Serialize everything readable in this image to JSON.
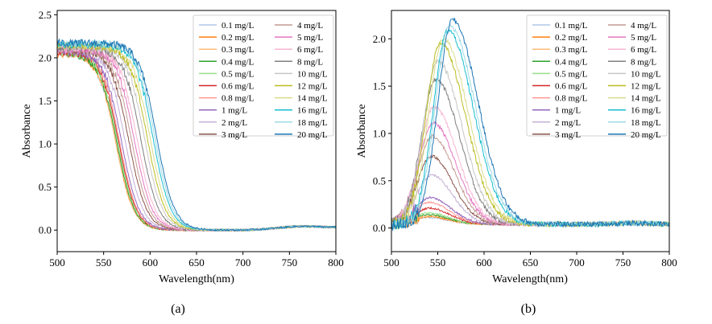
{
  "panels": [
    {
      "label": "(a)"
    },
    {
      "label": "(b)"
    }
  ],
  "legend_entries": [
    "0.1 mg/L",
    "0.2 mg/L",
    "0.3 mg/L",
    "0.4 mg/L",
    "0.5 mg/L",
    "0.6 mg/L",
    "0.8 mg/L",
    "1 mg/L",
    "2 mg/L",
    "3 mg/L",
    "4 mg/L",
    "5 mg/L",
    "6 mg/L",
    "8 mg/L",
    "10 mg/L",
    "12 mg/L",
    "14 mg/L",
    "16 mg/L",
    "18 mg/L",
    "20 mg/L"
  ],
  "series_colors": [
    "#aec7e8",
    "#ff7f0e",
    "#ffbb78",
    "#2ca02c",
    "#98df8a",
    "#d62728",
    "#ff9896",
    "#9467bd",
    "#c5b0d5",
    "#8c564b",
    "#c49c94",
    "#e377c2",
    "#f7b6d2",
    "#7f7f7f",
    "#c7c7c7",
    "#bcbd22",
    "#dbdb8d",
    "#17becf",
    "#9edae5",
    "#1f77b4"
  ],
  "chart_data": [
    {
      "type": "line",
      "panel": "(a)",
      "xlabel": "Wavelength(nm)",
      "ylabel": "Absorbance",
      "xlim": [
        500,
        800
      ],
      "ylim": [
        -0.25,
        2.55
      ],
      "x_ticks": [
        500,
        550,
        600,
        650,
        700,
        750,
        800
      ],
      "y_ticks": [
        0.0,
        0.5,
        1.0,
        1.5,
        2.0,
        2.5
      ],
      "y_tick_labels": [
        "0.0",
        "0.5",
        "1.0",
        "1.5",
        "2.0",
        "2.5"
      ],
      "grid": false,
      "legend_position": "top-right",
      "description_model": "plateau ~2.05-2.2 then sigmoidal drop; half-point wavelength per series",
      "series": [
        {
          "name": "0.1 mg/L",
          "plateau": 2.05,
          "half_point_nm": 563
        },
        {
          "name": "0.2 mg/L",
          "plateau": 2.05,
          "half_point_nm": 563
        },
        {
          "name": "0.3 mg/L",
          "plateau": 2.06,
          "half_point_nm": 563
        },
        {
          "name": "0.4 mg/L",
          "plateau": 2.06,
          "half_point_nm": 564
        },
        {
          "name": "0.5 mg/L",
          "plateau": 2.07,
          "half_point_nm": 565
        },
        {
          "name": "0.6 mg/L",
          "plateau": 2.07,
          "half_point_nm": 566
        },
        {
          "name": "0.8 mg/L",
          "plateau": 2.08,
          "half_point_nm": 567
        },
        {
          "name": "1 mg/L",
          "plateau": 2.08,
          "half_point_nm": 569
        },
        {
          "name": "2 mg/L",
          "plateau": 2.09,
          "half_point_nm": 573
        },
        {
          "name": "3 mg/L",
          "plateau": 2.09,
          "half_point_nm": 577
        },
        {
          "name": "4 mg/L",
          "plateau": 2.1,
          "half_point_nm": 580
        },
        {
          "name": "5 mg/L",
          "plateau": 2.1,
          "half_point_nm": 583
        },
        {
          "name": "6 mg/L",
          "plateau": 2.11,
          "half_point_nm": 586
        },
        {
          "name": "8 mg/L",
          "plateau": 2.12,
          "half_point_nm": 590
        },
        {
          "name": "10 mg/L",
          "plateau": 2.13,
          "half_point_nm": 594
        },
        {
          "name": "12 mg/L",
          "plateau": 2.14,
          "half_point_nm": 597
        },
        {
          "name": "14 mg/L",
          "plateau": 2.15,
          "half_point_nm": 600
        },
        {
          "name": "16 mg/L",
          "plateau": 2.16,
          "half_point_nm": 603
        },
        {
          "name": "18 mg/L",
          "plateau": 2.17,
          "half_point_nm": 605
        },
        {
          "name": "20 mg/L",
          "plateau": 2.17,
          "half_point_nm": 607
        }
      ]
    },
    {
      "type": "line",
      "panel": "(b)",
      "xlabel": "Wavelength(nm)",
      "ylabel": "Absorbance",
      "xlim": [
        500,
        800
      ],
      "ylim": [
        -0.25,
        2.3
      ],
      "x_ticks": [
        500,
        550,
        600,
        650,
        700,
        750,
        800
      ],
      "y_ticks": [
        0.0,
        0.5,
        1.0,
        1.5,
        2.0
      ],
      "y_tick_labels": [
        "0.0",
        "0.5",
        "1.0",
        "1.5",
        "2.0"
      ],
      "grid": false,
      "legend_position": "top-right",
      "description_model": "single absorption peak per series; peak value and peak wavelength",
      "series": [
        {
          "name": "0.1 mg/L",
          "peak": 0.07,
          "peak_nm": 540
        },
        {
          "name": "0.2 mg/L",
          "peak": 0.08,
          "peak_nm": 540
        },
        {
          "name": "0.3 mg/L",
          "peak": 0.09,
          "peak_nm": 540
        },
        {
          "name": "0.4 mg/L",
          "peak": 0.1,
          "peak_nm": 540
        },
        {
          "name": "0.5 mg/L",
          "peak": 0.12,
          "peak_nm": 540
        },
        {
          "name": "0.6 mg/L",
          "peak": 0.17,
          "peak_nm": 541
        },
        {
          "name": "0.8 mg/L",
          "peak": 0.23,
          "peak_nm": 541
        },
        {
          "name": "1 mg/L",
          "peak": 0.28,
          "peak_nm": 542
        },
        {
          "name": "2 mg/L",
          "peak": 0.52,
          "peak_nm": 543
        },
        {
          "name": "3 mg/L",
          "peak": 0.72,
          "peak_nm": 543
        },
        {
          "name": "4 mg/L",
          "peak": 0.93,
          "peak_nm": 544
        },
        {
          "name": "5 mg/L",
          "peak": 1.07,
          "peak_nm": 545
        },
        {
          "name": "6 mg/L",
          "peak": 1.24,
          "peak_nm": 546
        },
        {
          "name": "8 mg/L",
          "peak": 1.53,
          "peak_nm": 548
        },
        {
          "name": "10 mg/L",
          "peak": 1.72,
          "peak_nm": 550
        },
        {
          "name": "12 mg/L",
          "peak": 1.92,
          "peak_nm": 553
        },
        {
          "name": "14 mg/L",
          "peak": 1.96,
          "peak_nm": 556
        },
        {
          "name": "16 mg/L",
          "peak": 2.05,
          "peak_nm": 561
        },
        {
          "name": "18 mg/L",
          "peak": 2.1,
          "peak_nm": 563
        },
        {
          "name": "20 mg/L",
          "peak": 2.16,
          "peak_nm": 566
        }
      ]
    }
  ]
}
